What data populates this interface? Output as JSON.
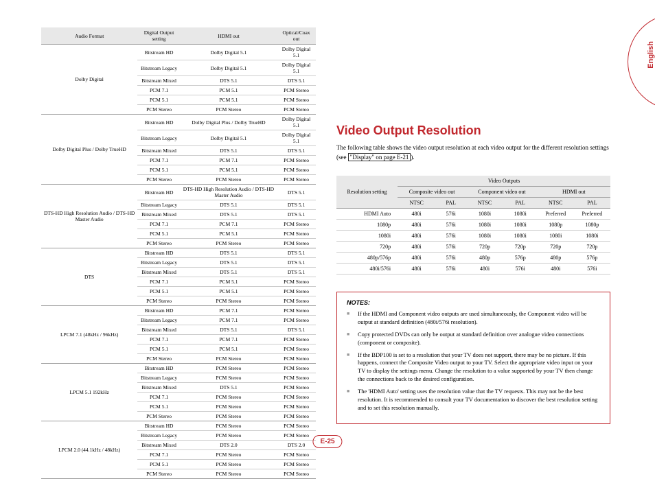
{
  "lang_tab": "English",
  "page_number": "E-25",
  "audio_table": {
    "headers": [
      "Audio Format",
      "Digital Output setting",
      "HDMI out",
      "Optical/Coax out"
    ],
    "groups": [
      {
        "format": "Dolby Digital",
        "rows": [
          [
            "Bitstream HD",
            "Dolby Digital 5.1",
            "Dolby Digital 5.1"
          ],
          [
            "Bitstream Legacy",
            "Dolby Digital 5.1",
            "Dolby Digital 5.1"
          ],
          [
            "Bitstream Mixed",
            "DTS 5.1",
            "DTS 5.1"
          ],
          [
            "PCM 7.1",
            "PCM 5.1",
            "PCM Stereo"
          ],
          [
            "PCM 5.1",
            "PCM 5.1",
            "PCM Stereo"
          ],
          [
            "PCM Stereo",
            "PCM Stereo",
            "PCM Stereo"
          ]
        ]
      },
      {
        "format": "Dolby Digital Plus / Dolby TrueHD",
        "rows": [
          [
            "Bitstream HD",
            "Dolby Digital Plus / Dolby TrueHD",
            "Dolby Digital 5.1"
          ],
          [
            "Bitstream Legacy",
            "Dolby Digital 5.1",
            "Dolby Digital 5.1"
          ],
          [
            "Bitstream Mixed",
            "DTS 5.1",
            "DTS 5.1"
          ],
          [
            "PCM 7.1",
            "PCM 7.1",
            "PCM Stereo"
          ],
          [
            "PCM 5.1",
            "PCM 5.1",
            "PCM Stereo"
          ],
          [
            "PCM Stereo",
            "PCM Stereo",
            "PCM Stereo"
          ]
        ]
      },
      {
        "format": "DTS-HD High Resolution Audio / DTS-HD Master Audio",
        "rows": [
          [
            "Bitstream HD",
            "DTS-HD High Resolution Audio / DTS-HD Master Audio",
            "DTS 5.1"
          ],
          [
            "Bitstream Legacy",
            "DTS 5.1",
            "DTS 5.1"
          ],
          [
            "Bitstream Mixed",
            "DTS 5.1",
            "DTS 5.1"
          ],
          [
            "PCM 7.1",
            "PCM 7.1",
            "PCM Stereo"
          ],
          [
            "PCM 5.1",
            "PCM 5.1",
            "PCM Stereo"
          ],
          [
            "PCM Stereo",
            "PCM Stereo",
            "PCM Stereo"
          ]
        ]
      },
      {
        "format": "DTS",
        "rows": [
          [
            "Bitstream HD",
            "DTS 5.1",
            "DTS 5.1"
          ],
          [
            "Bitstream Legacy",
            "DTS 5.1",
            "DTS 5.1"
          ],
          [
            "Bitstream Mixed",
            "DTS 5.1",
            "DTS 5.1"
          ],
          [
            "PCM 7.1",
            "PCM 5.1",
            "PCM Stereo"
          ],
          [
            "PCM 5.1",
            "PCM 5.1",
            "PCM Stereo"
          ],
          [
            "PCM Stereo",
            "PCM Stereo",
            "PCM Stereo"
          ]
        ]
      },
      {
        "format": "LPCM 7.1 (48kHz / 96kHz)",
        "rows": [
          [
            "Bitstream HD",
            "PCM 7.1",
            "PCM Stereo"
          ],
          [
            "Bitstream Legacy",
            "PCM 7.1",
            "PCM Stereo"
          ],
          [
            "Bitstream Mixed",
            "DTS 5.1",
            "DTS 5.1"
          ],
          [
            "PCM 7.1",
            "PCM 7.1",
            "PCM Stereo"
          ],
          [
            "PCM 5.1",
            "PCM 5.1",
            "PCM Stereo"
          ],
          [
            "PCM Stereo",
            "PCM Stereo",
            "PCM Stereo"
          ]
        ]
      },
      {
        "format": "LPCM 5.1 192kHz",
        "rows": [
          [
            "Bitstream HD",
            "PCM Stereo",
            "PCM Stereo"
          ],
          [
            "Bitstream Legacy",
            "PCM Stereo",
            "PCM Stereo"
          ],
          [
            "Bitstream Mixed",
            "DTS 5.1",
            "PCM Stereo"
          ],
          [
            "PCM 7.1",
            "PCM Stereo",
            "PCM Stereo"
          ],
          [
            "PCM 5.1",
            "PCM Stereo",
            "PCM Stereo"
          ],
          [
            "PCM Stereo",
            "PCM Stereo",
            "PCM Stereo"
          ]
        ]
      },
      {
        "format": "LPCM 2.0 (44.1kHz / 48kHz)",
        "rows": [
          [
            "Bitstream HD",
            "PCM Stereo",
            "PCM Stereo"
          ],
          [
            "Bitstream Legacy",
            "PCM Stereo",
            "PCM Stereo"
          ],
          [
            "Bitstream Mixed",
            "DTS 2.0",
            "DTS 2.0"
          ],
          [
            "PCM 7.1",
            "PCM Stereo",
            "PCM Stereo"
          ],
          [
            "PCM 5.1",
            "PCM Stereo",
            "PCM Stereo"
          ],
          [
            "PCM Stereo",
            "PCM Stereo",
            "PCM Stereo"
          ]
        ]
      }
    ]
  },
  "video_section": {
    "title": "Video Output Resolution",
    "intro_a": "The following table shows the video output resolution at each video output for the different resolution settings (see ",
    "intro_ref": "\"Display\" on page E-21",
    "intro_b": ").",
    "table": {
      "h_resolution": "Resolution setting",
      "h_videooutputs": "Video Outputs",
      "h_composite": "Composite video out",
      "h_component": "Component video out",
      "h_hdmi": "HDMI out",
      "h_ntsc": "NTSC",
      "h_pal": "PAL",
      "rows": [
        [
          "HDMI Auto",
          "480i",
          "576i",
          "1080i",
          "1080i",
          "Preferred",
          "Preferred"
        ],
        [
          "1080p",
          "480i",
          "576i",
          "1080i",
          "1080i",
          "1080p",
          "1080p"
        ],
        [
          "1080i",
          "480i",
          "576i",
          "1080i",
          "1080i",
          "1080i",
          "1080i"
        ],
        [
          "720p",
          "480i",
          "576i",
          "720p",
          "720p",
          "720p",
          "720p"
        ],
        [
          "480p/576p",
          "480i",
          "576i",
          "480p",
          "576p",
          "480p",
          "576p"
        ],
        [
          "480i/576i",
          "480i",
          "576i",
          "480i",
          "576i",
          "480i",
          "576i"
        ]
      ]
    }
  },
  "notes": {
    "title": "NOTES:",
    "items": [
      "If the HDMI and Component video outputs are used simultaneously, the Component video will be output at standard definition (480i/576i resolution).",
      "Copy protected DVDs can only be output at standard definition over analogue video connections (component or composite).",
      "If the BDP100 is set to a resolution that your TV does not support, there may be no picture. If this happens, connect the Composite Video output to your TV. Select the appropriate video input on your TV to display the settings menu. Change the resolution to a value supported by your TV then change the connections back to the desired configuration.",
      "The 'HDMI Auto' setting uses the resolution value that the TV requests. This may not be the best resolution. It is recommended to consult your TV documentation to discover the best resolution setting and to set this resolution manually."
    ]
  },
  "colors": {
    "accent": "#c1272d",
    "header_bg": "#e8e8e8"
  }
}
